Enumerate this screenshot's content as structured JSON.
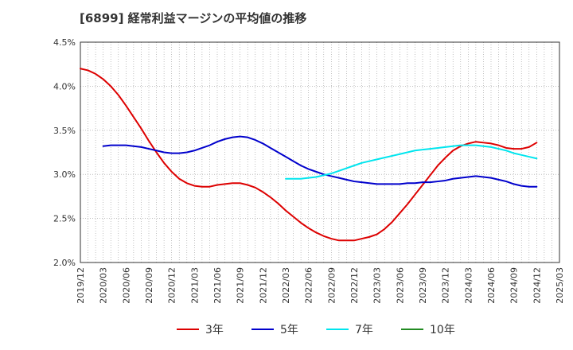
{
  "title": "[6899]  経常利益マージンの平均値の推移",
  "chart_data": {
    "type": "line",
    "ylim": [
      2.0,
      4.5
    ],
    "y_ticks": [
      "2.0%",
      "2.5%",
      "3.0%",
      "3.5%",
      "4.0%",
      "4.5%"
    ],
    "x_ticks": [
      "2019/12",
      "2020/03",
      "2020/06",
      "2020/09",
      "2020/12",
      "2021/03",
      "2021/06",
      "2021/09",
      "2021/12",
      "2022/03",
      "2022/06",
      "2022/09",
      "2022/12",
      "2023/03",
      "2023/06",
      "2023/09",
      "2023/12",
      "2024/03",
      "2024/06",
      "2024/09",
      "2024/12",
      "2025/03"
    ],
    "grid": true,
    "legend_position": "bottom",
    "series": [
      {
        "name": "3年",
        "color": "#dd0000",
        "points": [
          [
            "2019/12",
            4.2
          ],
          [
            "2020/01",
            4.18
          ],
          [
            "2020/02",
            4.14
          ],
          [
            "2020/03",
            4.08
          ],
          [
            "2020/04",
            4.0
          ],
          [
            "2020/05",
            3.9
          ],
          [
            "2020/06",
            3.78
          ],
          [
            "2020/07",
            3.65
          ],
          [
            "2020/08",
            3.52
          ],
          [
            "2020/09",
            3.38
          ],
          [
            "2020/10",
            3.25
          ],
          [
            "2020/11",
            3.13
          ],
          [
            "2020/12",
            3.03
          ],
          [
            "2021/01",
            2.95
          ],
          [
            "2021/02",
            2.9
          ],
          [
            "2021/03",
            2.87
          ],
          [
            "2021/04",
            2.86
          ],
          [
            "2021/05",
            2.86
          ],
          [
            "2021/06",
            2.88
          ],
          [
            "2021/07",
            2.89
          ],
          [
            "2021/08",
            2.9
          ],
          [
            "2021/09",
            2.9
          ],
          [
            "2021/10",
            2.88
          ],
          [
            "2021/11",
            2.85
          ],
          [
            "2021/12",
            2.8
          ],
          [
            "2022/01",
            2.74
          ],
          [
            "2022/02",
            2.67
          ],
          [
            "2022/03",
            2.59
          ],
          [
            "2022/04",
            2.52
          ],
          [
            "2022/05",
            2.45
          ],
          [
            "2022/06",
            2.39
          ],
          [
            "2022/07",
            2.34
          ],
          [
            "2022/08",
            2.3
          ],
          [
            "2022/09",
            2.27
          ],
          [
            "2022/10",
            2.25
          ],
          [
            "2022/11",
            2.25
          ],
          [
            "2022/12",
            2.25
          ],
          [
            "2023/01",
            2.27
          ],
          [
            "2023/02",
            2.29
          ],
          [
            "2023/03",
            2.32
          ],
          [
            "2023/04",
            2.38
          ],
          [
            "2023/05",
            2.46
          ],
          [
            "2023/06",
            2.56
          ],
          [
            "2023/07",
            2.66
          ],
          [
            "2023/08",
            2.77
          ],
          [
            "2023/09",
            2.88
          ],
          [
            "2023/10",
            2.99
          ],
          [
            "2023/11",
            3.1
          ],
          [
            "2023/12",
            3.19
          ],
          [
            "2024/01",
            3.27
          ],
          [
            "2024/02",
            3.32
          ],
          [
            "2024/03",
            3.35
          ],
          [
            "2024/04",
            3.37
          ],
          [
            "2024/05",
            3.36
          ],
          [
            "2024/06",
            3.35
          ],
          [
            "2024/07",
            3.33
          ],
          [
            "2024/08",
            3.3
          ],
          [
            "2024/09",
            3.29
          ],
          [
            "2024/10",
            3.29
          ],
          [
            "2024/11",
            3.31
          ],
          [
            "2024/12",
            3.36
          ]
        ]
      },
      {
        "name": "5年",
        "color": "#0000cc",
        "points": [
          [
            "2020/03",
            3.32
          ],
          [
            "2020/04",
            3.33
          ],
          [
            "2020/05",
            3.33
          ],
          [
            "2020/06",
            3.33
          ],
          [
            "2020/07",
            3.32
          ],
          [
            "2020/08",
            3.31
          ],
          [
            "2020/09",
            3.29
          ],
          [
            "2020/10",
            3.27
          ],
          [
            "2020/11",
            3.25
          ],
          [
            "2020/12",
            3.24
          ],
          [
            "2021/01",
            3.24
          ],
          [
            "2021/02",
            3.25
          ],
          [
            "2021/03",
            3.27
          ],
          [
            "2021/04",
            3.3
          ],
          [
            "2021/05",
            3.33
          ],
          [
            "2021/06",
            3.37
          ],
          [
            "2021/07",
            3.4
          ],
          [
            "2021/08",
            3.42
          ],
          [
            "2021/09",
            3.43
          ],
          [
            "2021/10",
            3.42
          ],
          [
            "2021/11",
            3.39
          ],
          [
            "2021/12",
            3.35
          ],
          [
            "2022/01",
            3.3
          ],
          [
            "2022/02",
            3.25
          ],
          [
            "2022/03",
            3.2
          ],
          [
            "2022/04",
            3.15
          ],
          [
            "2022/05",
            3.1
          ],
          [
            "2022/06",
            3.06
          ],
          [
            "2022/07",
            3.03
          ],
          [
            "2022/08",
            3.0
          ],
          [
            "2022/09",
            2.98
          ],
          [
            "2022/10",
            2.96
          ],
          [
            "2022/11",
            2.94
          ],
          [
            "2022/12",
            2.92
          ],
          [
            "2023/01",
            2.91
          ],
          [
            "2023/02",
            2.9
          ],
          [
            "2023/03",
            2.89
          ],
          [
            "2023/04",
            2.89
          ],
          [
            "2023/05",
            2.89
          ],
          [
            "2023/06",
            2.89
          ],
          [
            "2023/07",
            2.9
          ],
          [
            "2023/08",
            2.9
          ],
          [
            "2023/09",
            2.91
          ],
          [
            "2023/10",
            2.91
          ],
          [
            "2023/11",
            2.92
          ],
          [
            "2023/12",
            2.93
          ],
          [
            "2024/01",
            2.95
          ],
          [
            "2024/02",
            2.96
          ],
          [
            "2024/03",
            2.97
          ],
          [
            "2024/04",
            2.98
          ],
          [
            "2024/05",
            2.97
          ],
          [
            "2024/06",
            2.96
          ],
          [
            "2024/07",
            2.94
          ],
          [
            "2024/08",
            2.92
          ],
          [
            "2024/09",
            2.89
          ],
          [
            "2024/10",
            2.87
          ],
          [
            "2024/11",
            2.86
          ],
          [
            "2024/12",
            2.86
          ]
        ]
      },
      {
        "name": "7年",
        "color": "#00e5ee",
        "points": [
          [
            "2022/03",
            2.95
          ],
          [
            "2022/04",
            2.95
          ],
          [
            "2022/05",
            2.95
          ],
          [
            "2022/06",
            2.96
          ],
          [
            "2022/07",
            2.97
          ],
          [
            "2022/08",
            2.99
          ],
          [
            "2022/09",
            3.01
          ],
          [
            "2022/10",
            3.04
          ],
          [
            "2022/11",
            3.07
          ],
          [
            "2022/12",
            3.1
          ],
          [
            "2023/01",
            3.13
          ],
          [
            "2023/02",
            3.15
          ],
          [
            "2023/03",
            3.17
          ],
          [
            "2023/04",
            3.19
          ],
          [
            "2023/05",
            3.21
          ],
          [
            "2023/06",
            3.23
          ],
          [
            "2023/07",
            3.25
          ],
          [
            "2023/08",
            3.27
          ],
          [
            "2023/09",
            3.28
          ],
          [
            "2023/10",
            3.29
          ],
          [
            "2023/11",
            3.3
          ],
          [
            "2023/12",
            3.31
          ],
          [
            "2024/01",
            3.32
          ],
          [
            "2024/02",
            3.33
          ],
          [
            "2024/03",
            3.33
          ],
          [
            "2024/04",
            3.33
          ],
          [
            "2024/05",
            3.32
          ],
          [
            "2024/06",
            3.31
          ],
          [
            "2024/07",
            3.29
          ],
          [
            "2024/08",
            3.27
          ],
          [
            "2024/09",
            3.24
          ],
          [
            "2024/10",
            3.22
          ],
          [
            "2024/11",
            3.2
          ],
          [
            "2024/12",
            3.18
          ]
        ]
      },
      {
        "name": "10年",
        "color": "#228b22",
        "points": []
      }
    ]
  }
}
